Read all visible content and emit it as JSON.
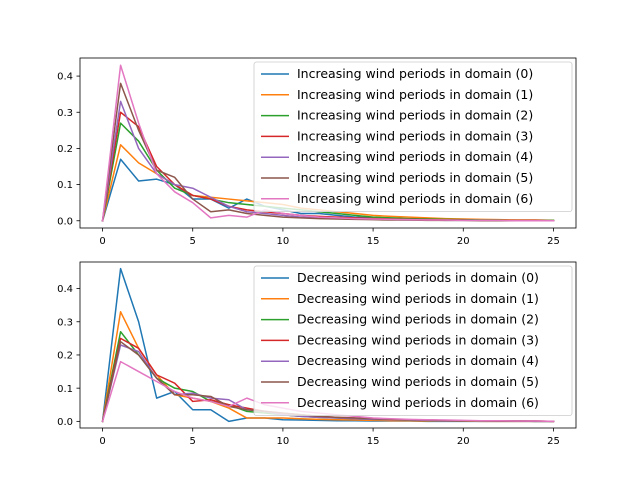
{
  "chart_data": [
    {
      "type": "line",
      "x": [
        0,
        1,
        2,
        3,
        4,
        5,
        6,
        7,
        8,
        9,
        10,
        11,
        12,
        13,
        14,
        15,
        16,
        17,
        18,
        19,
        20,
        21,
        22,
        23,
        24,
        25
      ],
      "xticks": [
        0,
        5,
        10,
        15,
        20,
        25
      ],
      "yticks": [
        "0.0",
        "0.1",
        "0.2",
        "0.3",
        "0.4"
      ],
      "yticks_values": [
        0,
        0.1,
        0.2,
        0.3,
        0.4
      ],
      "xlim": [
        -1.25,
        26.25
      ],
      "ylim": [
        -0.02,
        0.45
      ],
      "grid": false,
      "legend_position": "upper right",
      "series": [
        {
          "name": "Increasing wind periods in domain (0)",
          "color": "#1f77b4",
          "values": [
            0,
            0.17,
            0.11,
            0.115,
            0.1,
            0.06,
            0.06,
            0.035,
            0.06,
            0.04,
            0.03,
            0.02,
            0.02,
            0.015,
            0.01,
            0.008,
            0.006,
            0.005,
            0.004,
            0.003,
            0.003,
            0.002,
            0.002,
            0.001,
            0.001,
            0.001
          ]
        },
        {
          "name": "Increasing wind periods in domain (1)",
          "color": "#ff7f0e",
          "values": [
            0,
            0.21,
            0.16,
            0.13,
            0.1,
            0.07,
            0.065,
            0.06,
            0.055,
            0.05,
            0.045,
            0.035,
            0.03,
            0.025,
            0.02,
            0.015,
            0.012,
            0.01,
            0.008,
            0.006,
            0.005,
            0.004,
            0.003,
            0.002,
            0.002,
            0.001
          ]
        },
        {
          "name": "Increasing wind periods in domain (2)",
          "color": "#2ca02c",
          "values": [
            0,
            0.27,
            0.22,
            0.14,
            0.09,
            0.07,
            0.06,
            0.05,
            0.045,
            0.04,
            0.035,
            0.03,
            0.025,
            0.02,
            0.015,
            0.01,
            0.008,
            0.006,
            0.005,
            0.004,
            0.003,
            0.002,
            0.002,
            0.001,
            0.001,
            0.001
          ]
        },
        {
          "name": "Increasing wind periods in domain (3)",
          "color": "#d62728",
          "values": [
            0,
            0.3,
            0.26,
            0.15,
            0.1,
            0.07,
            0.06,
            0.04,
            0.03,
            0.025,
            0.02,
            0.015,
            0.012,
            0.01,
            0.008,
            0.006,
            0.005,
            0.004,
            0.003,
            0.002,
            0.002,
            0.001,
            0.001,
            0.001,
            0.001,
            0.0
          ]
        },
        {
          "name": "Increasing wind periods in domain (4)",
          "color": "#9467bd",
          "values": [
            0,
            0.33,
            0.2,
            0.13,
            0.1,
            0.09,
            0.065,
            0.04,
            0.025,
            0.02,
            0.015,
            0.01,
            0.008,
            0.006,
            0.005,
            0.004,
            0.003,
            0.002,
            0.002,
            0.001,
            0.001,
            0.001,
            0.0,
            0.0,
            0.0,
            0.0
          ]
        },
        {
          "name": "Increasing wind periods in domain (5)",
          "color": "#8c564b",
          "values": [
            0,
            0.38,
            0.25,
            0.14,
            0.12,
            0.06,
            0.025,
            0.03,
            0.02,
            0.015,
            0.01,
            0.008,
            0.006,
            0.005,
            0.004,
            0.003,
            0.002,
            0.002,
            0.001,
            0.001,
            0.001,
            0.0,
            0.0,
            0.0,
            0.0,
            0.0
          ]
        },
        {
          "name": "Increasing wind periods in domain (6)",
          "color": "#e377c2",
          "values": [
            0,
            0.43,
            0.27,
            0.13,
            0.08,
            0.05,
            0.008,
            0.015,
            0.01,
            0.03,
            0.02,
            0.015,
            0.01,
            0.008,
            0.006,
            0.005,
            0.004,
            0.003,
            0.002,
            0.002,
            0.001,
            0.001,
            0.001,
            0.0,
            0.0,
            0.0
          ]
        }
      ]
    },
    {
      "type": "line",
      "x": [
        0,
        1,
        2,
        3,
        4,
        5,
        6,
        7,
        8,
        9,
        10,
        11,
        12,
        13,
        14,
        15,
        16,
        17,
        18,
        19,
        20,
        21,
        22,
        23,
        24,
        25
      ],
      "xticks": [
        0,
        5,
        10,
        15,
        20,
        25
      ],
      "yticks": [
        "0.0",
        "0.1",
        "0.2",
        "0.3",
        "0.4"
      ],
      "yticks_values": [
        0,
        0.1,
        0.2,
        0.3,
        0.4
      ],
      "xlim": [
        -1.25,
        26.25
      ],
      "ylim": [
        -0.02,
        0.48
      ],
      "grid": false,
      "legend_position": "upper right",
      "series": [
        {
          "name": "Decreasing wind periods in domain (0)",
          "color": "#1f77b4",
          "values": [
            0,
            0.46,
            0.3,
            0.07,
            0.09,
            0.035,
            0.035,
            0.0,
            0.01,
            0.01,
            0.005,
            0.004,
            0.003,
            0.002,
            0.002,
            0.001,
            0.001,
            0.001,
            0.0,
            0.0,
            0.0,
            0.0,
            0.0,
            0.0,
            0.0,
            0.0
          ]
        },
        {
          "name": "Decreasing wind periods in domain (1)",
          "color": "#ff7f0e",
          "values": [
            0,
            0.33,
            0.22,
            0.14,
            0.08,
            0.07,
            0.06,
            0.04,
            0.01,
            0.01,
            0.01,
            0.008,
            0.006,
            0.005,
            0.004,
            0.003,
            0.002,
            0.002,
            0.001,
            0.001,
            0.001,
            0.0,
            0.0,
            0.0,
            0.0,
            0.0
          ]
        },
        {
          "name": "Decreasing wind periods in domain (2)",
          "color": "#2ca02c",
          "values": [
            0,
            0.27,
            0.2,
            0.13,
            0.1,
            0.09,
            0.06,
            0.05,
            0.03,
            0.025,
            0.02,
            0.015,
            0.012,
            0.01,
            0.008,
            0.006,
            0.005,
            0.004,
            0.003,
            0.002,
            0.002,
            0.001,
            0.001,
            0.001,
            0.0,
            0.0
          ]
        },
        {
          "name": "Decreasing wind periods in domain (3)",
          "color": "#d62728",
          "values": [
            0,
            0.25,
            0.22,
            0.14,
            0.115,
            0.06,
            0.065,
            0.05,
            0.04,
            0.03,
            0.025,
            0.02,
            0.015,
            0.012,
            0.01,
            0.008,
            0.006,
            0.005,
            0.004,
            0.003,
            0.002,
            0.002,
            0.001,
            0.001,
            0.001,
            0.0
          ]
        },
        {
          "name": "Decreasing wind periods in domain (4)",
          "color": "#9467bd",
          "values": [
            0,
            0.23,
            0.21,
            0.13,
            0.08,
            0.085,
            0.07,
            0.065,
            0.035,
            0.03,
            0.02,
            0.015,
            0.012,
            0.01,
            0.008,
            0.006,
            0.005,
            0.004,
            0.003,
            0.002,
            0.002,
            0.001,
            0.001,
            0.001,
            0.0,
            0.0
          ]
        },
        {
          "name": "Decreasing wind periods in domain (5)",
          "color": "#8c564b",
          "values": [
            0,
            0.24,
            0.2,
            0.13,
            0.08,
            0.08,
            0.075,
            0.045,
            0.035,
            0.03,
            0.025,
            0.02,
            0.015,
            0.012,
            0.01,
            0.008,
            0.006,
            0.005,
            0.004,
            0.003,
            0.002,
            0.002,
            0.001,
            0.001,
            0.001,
            0.0
          ]
        },
        {
          "name": "Decreasing wind periods in domain (6)",
          "color": "#e377c2",
          "values": [
            0,
            0.18,
            0.15,
            0.12,
            0.09,
            0.07,
            0.06,
            0.045,
            0.07,
            0.05,
            0.04,
            0.03,
            0.025,
            0.02,
            0.015,
            0.01,
            0.008,
            0.006,
            0.005,
            0.004,
            0.003,
            0.002,
            0.002,
            0.001,
            0.001,
            0.0
          ]
        }
      ]
    }
  ]
}
